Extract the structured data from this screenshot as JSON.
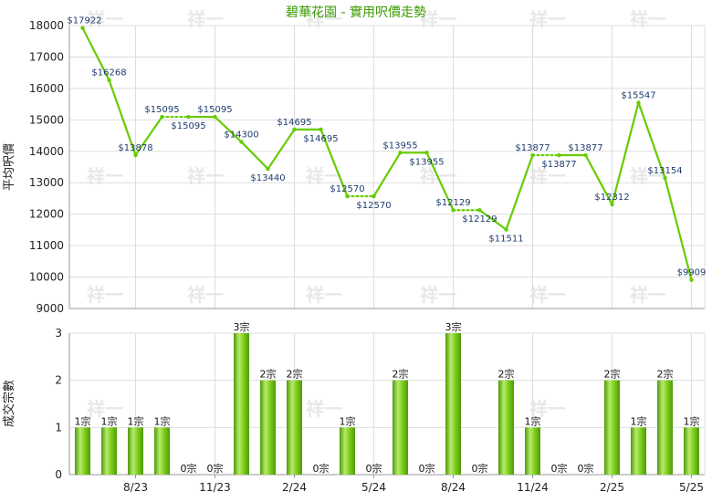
{
  "chart_data": [
    {
      "type": "line",
      "title": "碧華花園 - 實用呎價走勢",
      "ylabel": "平均呎價",
      "xlabel": "",
      "ylim": [
        9000,
        18000
      ],
      "yticks": [
        9000,
        10000,
        11000,
        12000,
        13000,
        14000,
        15000,
        16000,
        17000,
        18000
      ],
      "grid": true,
      "series": [
        {
          "values": [
            17922,
            16268,
            13878,
            15095,
            15095,
            15095,
            14300,
            13440,
            14695,
            14695,
            12570,
            12570,
            13955,
            13955,
            12129,
            12129,
            11511,
            13877,
            13877,
            13877,
            12312,
            15547,
            13154,
            9909
          ],
          "labels": [
            "$17922",
            "$16268",
            "$13878",
            "$15095",
            "$15095",
            "$15095",
            "$14300",
            "$13440",
            "$14695",
            "$14695",
            "$12570",
            "$12570",
            "$13955",
            "$13955",
            "$12129",
            "$12129",
            "$11511",
            "$13877",
            "$13877",
            "$13877",
            "$12312",
            "$15547",
            "$13154",
            "$9909"
          ],
          "label_side": [
            "r",
            "c",
            "c",
            "c",
            "c",
            "c",
            "c",
            "c",
            "c",
            "c",
            "c",
            "c",
            "c",
            "c",
            "c",
            "c",
            "c",
            "c",
            "c",
            "c",
            "c",
            "c",
            "c",
            "c"
          ],
          "label_pos": [
            "up",
            "up",
            "up",
            "up",
            "down",
            "up",
            "up",
            "down",
            "up",
            "down",
            "up",
            "down",
            "up",
            "down",
            "up",
            "down",
            "down",
            "up",
            "down",
            "up",
            "up",
            "up",
            "up",
            "up"
          ],
          "carried_forward": [
            false,
            false,
            false,
            false,
            true,
            false,
            false,
            false,
            false,
            false,
            false,
            true,
            false,
            false,
            false,
            true,
            false,
            false,
            true,
            false,
            false,
            false,
            false,
            false
          ]
        }
      ]
    },
    {
      "type": "bar",
      "ylabel": "成交宗數",
      "ylim": [
        0,
        3
      ],
      "yticks": [
        0,
        1,
        2,
        3
      ],
      "grid": true,
      "values": [
        1,
        1,
        1,
        1,
        0,
        0,
        3,
        2,
        2,
        0,
        1,
        0,
        2,
        0,
        3,
        0,
        2,
        1,
        0,
        0,
        2,
        1,
        2,
        1
      ],
      "labels": [
        "1宗",
        "1宗",
        "1宗",
        "1宗",
        "0宗",
        "0宗",
        "3宗",
        "2宗",
        "2宗",
        "0宗",
        "1宗",
        "0宗",
        "2宗",
        "0宗",
        "3宗",
        "0宗",
        "2宗",
        "1宗",
        "0宗",
        "0宗",
        "2宗",
        "1宗",
        "2宗",
        "1宗"
      ],
      "x_ticks": [
        {
          "index": 2,
          "label": "8/23"
        },
        {
          "index": 5,
          "label": "11/23"
        },
        {
          "index": 8,
          "label": "2/24"
        },
        {
          "index": 11,
          "label": "5/24"
        },
        {
          "index": 14,
          "label": "8/24"
        },
        {
          "index": 17,
          "label": "11/24"
        },
        {
          "index": 20,
          "label": "2/25"
        },
        {
          "index": 23,
          "label": "5/25"
        }
      ]
    }
  ],
  "colors": {
    "line": "#66cc00",
    "bar": "#7ccc1a",
    "bar_dark": "#4f9a08",
    "bar_light": "#b6ec6a",
    "grid": "#dddddd",
    "axis": "#999999",
    "title": "#3a9a00",
    "point_label": "#1f3c6e",
    "tick_label": "#222222",
    "watermark": "#e8e8e8"
  },
  "watermark": "祥一"
}
